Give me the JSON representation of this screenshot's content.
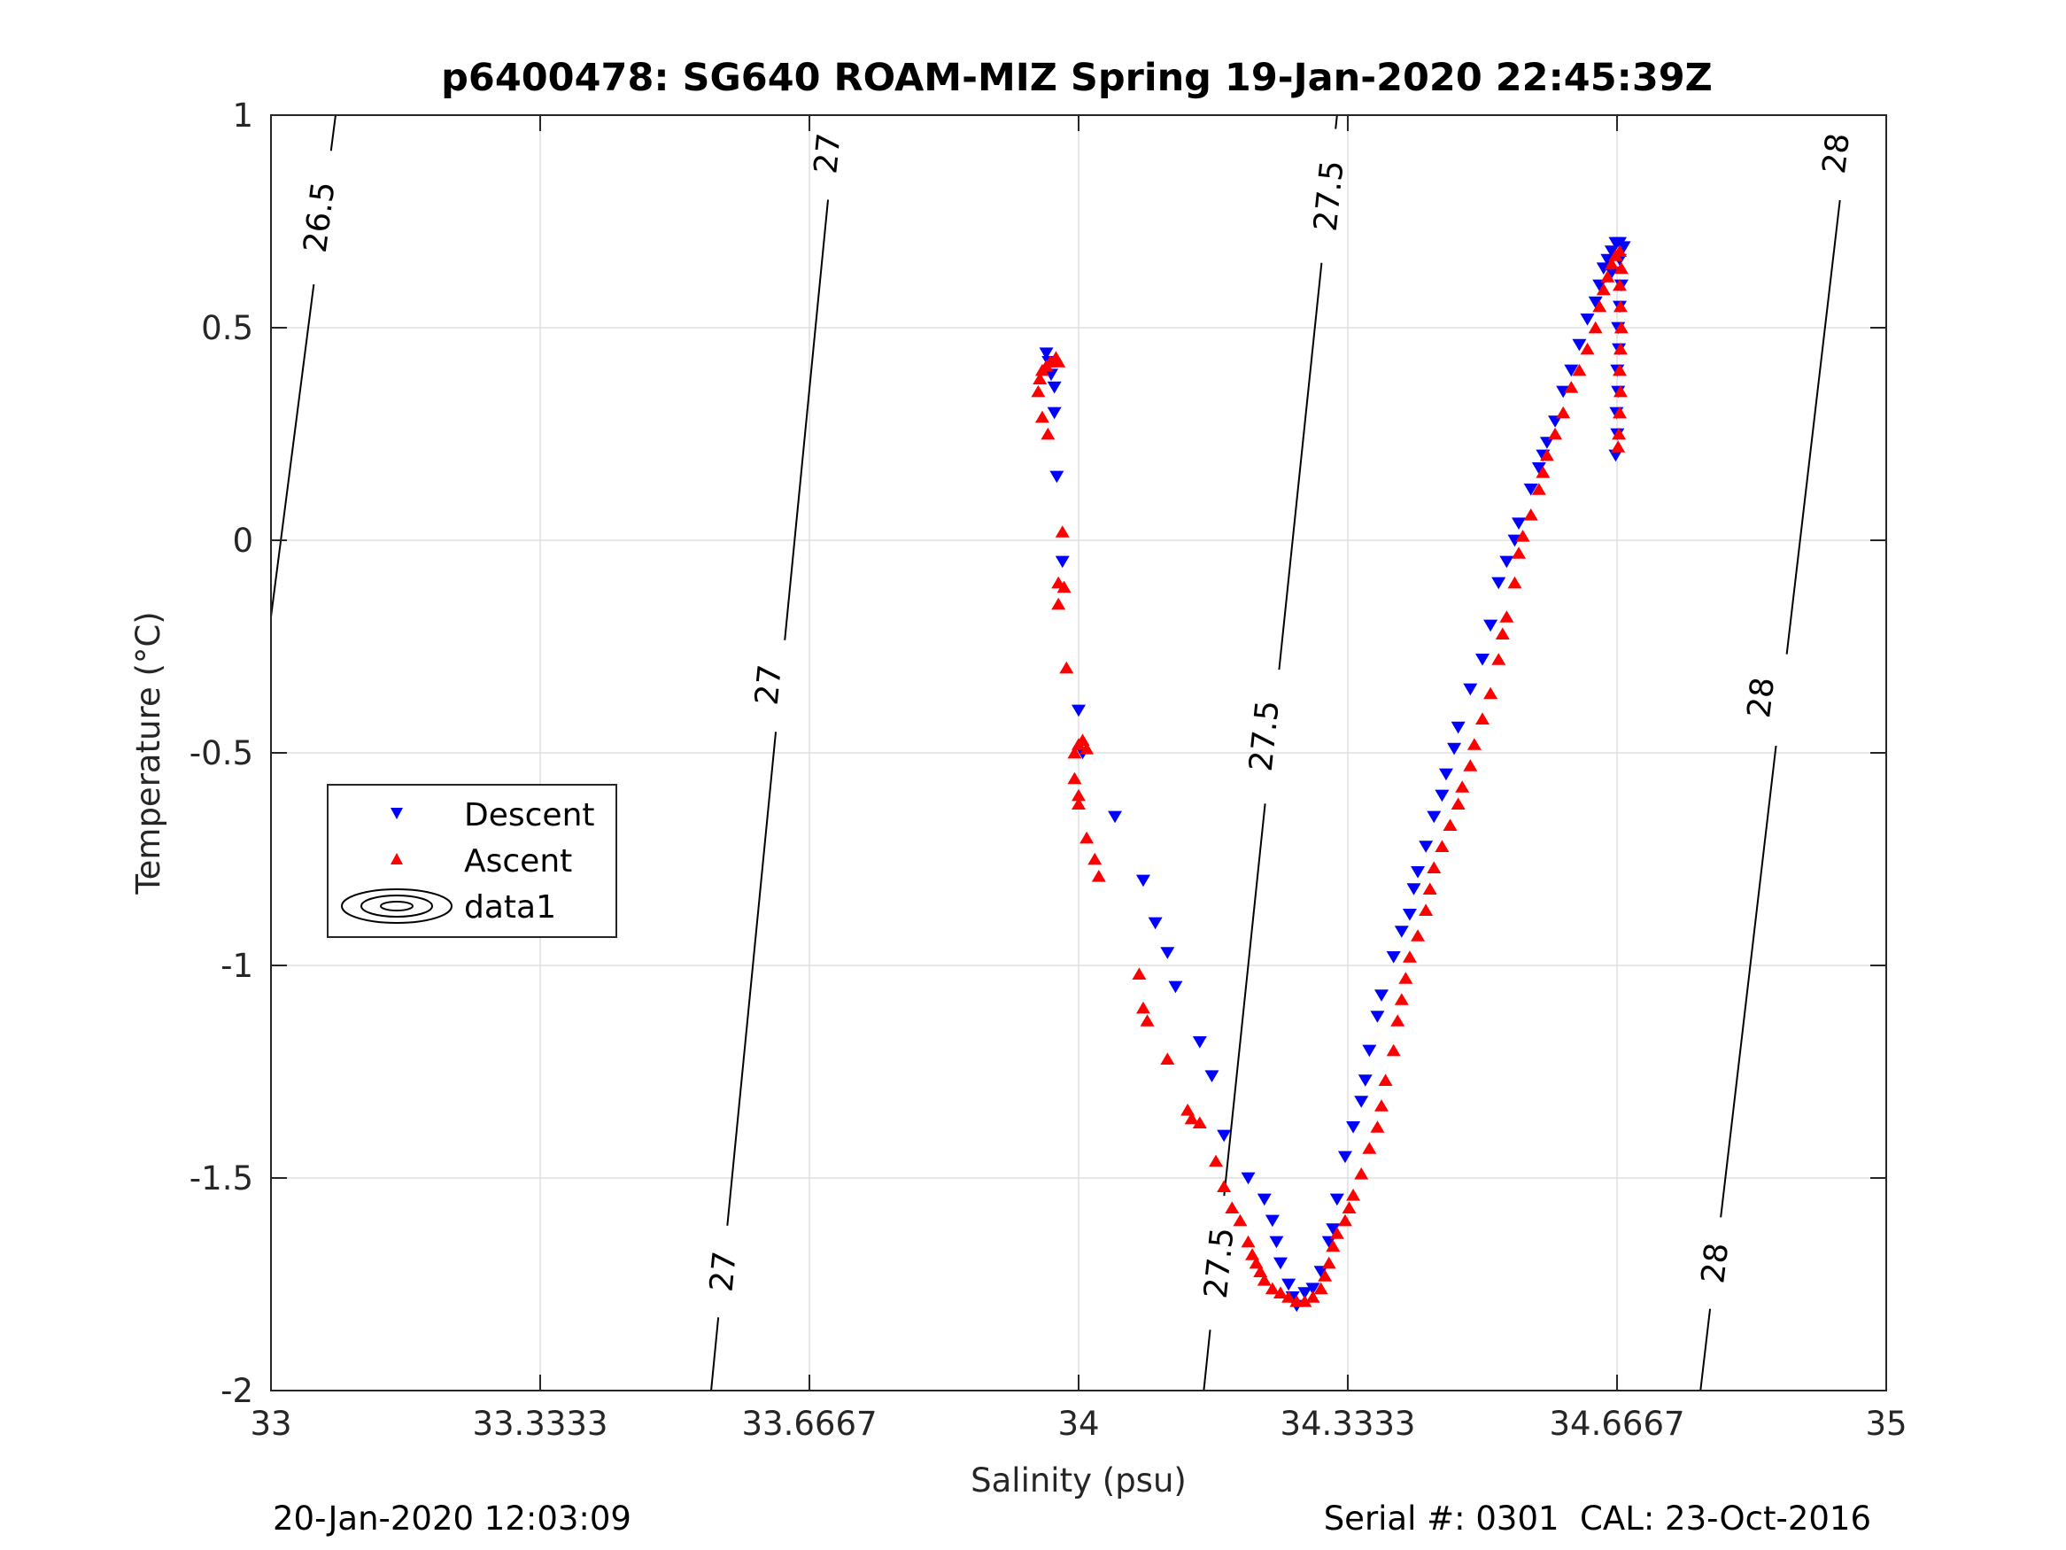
{
  "chart_data": {
    "type": "scatter",
    "title": "p6400478: SG640 ROAM-MIZ Spring 19-Jan-2020 22:45:39Z",
    "xlabel": "Salinity (psu)",
    "ylabel": "Temperature (°C)",
    "xlim": [
      33,
      35
    ],
    "ylim": [
      -2,
      1
    ],
    "x_ticks": [
      33,
      33.3333,
      33.6667,
      34,
      34.3333,
      34.6667,
      35
    ],
    "x_tick_labels": [
      "33",
      "33.3333",
      "33.6667",
      "34",
      "34.3333",
      "34.6667",
      "35"
    ],
    "y_ticks": [
      1,
      0.5,
      0,
      -0.5,
      -1,
      -1.5,
      -2
    ],
    "y_tick_labels": [
      "1",
      "0.5",
      "0",
      "-0.5",
      "-1",
      "-1.5",
      "-2"
    ],
    "grid": true,
    "legend_position": "left-middle",
    "footer_left": "20-Jan-2020 12:03:09",
    "footer_right": "Serial #: 0301  CAL: 23-Oct-2016",
    "series": [
      {
        "name": "Descent",
        "marker": "triangle-down",
        "color": "#0000ff",
        "points": [
          [
            33.96,
            0.44
          ],
          [
            33.963,
            0.42
          ],
          [
            33.966,
            0.39
          ],
          [
            33.97,
            0.36
          ],
          [
            33.97,
            0.3
          ],
          [
            33.973,
            0.15
          ],
          [
            33.98,
            -0.05
          ],
          [
            34.0,
            -0.4
          ],
          [
            34.005,
            -0.5
          ],
          [
            34.045,
            -0.65
          ],
          [
            34.08,
            -0.8
          ],
          [
            34.095,
            -0.9
          ],
          [
            34.11,
            -0.97
          ],
          [
            34.12,
            -1.05
          ],
          [
            34.15,
            -1.18
          ],
          [
            34.165,
            -1.26
          ],
          [
            34.18,
            -1.4
          ],
          [
            34.21,
            -1.5
          ],
          [
            34.23,
            -1.55
          ],
          [
            34.24,
            -1.6
          ],
          [
            34.245,
            -1.65
          ],
          [
            34.25,
            -1.7
          ],
          [
            34.26,
            -1.75
          ],
          [
            34.265,
            -1.78
          ],
          [
            34.27,
            -1.8
          ],
          [
            34.28,
            -1.77
          ],
          [
            34.29,
            -1.76
          ],
          [
            34.3,
            -1.72
          ],
          [
            34.31,
            -1.65
          ],
          [
            34.315,
            -1.62
          ],
          [
            34.32,
            -1.55
          ],
          [
            34.33,
            -1.45
          ],
          [
            34.34,
            -1.38
          ],
          [
            34.35,
            -1.32
          ],
          [
            34.355,
            -1.27
          ],
          [
            34.36,
            -1.2
          ],
          [
            34.37,
            -1.12
          ],
          [
            34.375,
            -1.07
          ],
          [
            34.39,
            -0.98
          ],
          [
            34.4,
            -0.92
          ],
          [
            34.41,
            -0.88
          ],
          [
            34.415,
            -0.82
          ],
          [
            34.42,
            -0.78
          ],
          [
            34.43,
            -0.72
          ],
          [
            34.44,
            -0.65
          ],
          [
            34.45,
            -0.6
          ],
          [
            34.455,
            -0.55
          ],
          [
            34.465,
            -0.49
          ],
          [
            34.47,
            -0.44
          ],
          [
            34.485,
            -0.35
          ],
          [
            34.5,
            -0.28
          ],
          [
            34.51,
            -0.2
          ],
          [
            34.52,
            -0.1
          ],
          [
            34.53,
            -0.05
          ],
          [
            34.54,
            0.0
          ],
          [
            34.545,
            0.04
          ],
          [
            34.56,
            0.12
          ],
          [
            34.57,
            0.17
          ],
          [
            34.575,
            0.2
          ],
          [
            34.58,
            0.23
          ],
          [
            34.59,
            0.28
          ],
          [
            34.6,
            0.35
          ],
          [
            34.61,
            0.4
          ],
          [
            34.62,
            0.46
          ],
          [
            34.63,
            0.52
          ],
          [
            34.64,
            0.56
          ],
          [
            34.645,
            0.6
          ],
          [
            34.65,
            0.64
          ],
          [
            34.655,
            0.66
          ],
          [
            34.66,
            0.68
          ],
          [
            34.665,
            0.7
          ],
          [
            34.67,
            0.7
          ],
          [
            34.675,
            0.69
          ],
          [
            34.67,
            0.66
          ],
          [
            34.672,
            0.6
          ],
          [
            34.67,
            0.55
          ],
          [
            34.668,
            0.5
          ],
          [
            34.669,
            0.45
          ],
          [
            34.667,
            0.4
          ],
          [
            34.668,
            0.35
          ],
          [
            34.666,
            0.3
          ],
          [
            34.667,
            0.25
          ],
          [
            34.665,
            0.2
          ],
          [
            34.66,
            0.63
          ]
        ]
      },
      {
        "name": "Ascent",
        "marker": "triangle-up",
        "color": "#ff0000",
        "points": [
          [
            33.95,
            0.35
          ],
          [
            33.952,
            0.38
          ],
          [
            33.955,
            0.4
          ],
          [
            33.96,
            0.41
          ],
          [
            33.965,
            0.42
          ],
          [
            33.972,
            0.43
          ],
          [
            33.975,
            0.42
          ],
          [
            33.955,
            0.29
          ],
          [
            33.962,
            0.25
          ],
          [
            33.98,
            0.02
          ],
          [
            33.975,
            -0.1
          ],
          [
            33.982,
            -0.11
          ],
          [
            33.975,
            -0.15
          ],
          [
            33.985,
            -0.3
          ],
          [
            33.995,
            -0.5
          ],
          [
            34.0,
            -0.48
          ],
          [
            34.005,
            -0.47
          ],
          [
            34.01,
            -0.49
          ],
          [
            33.995,
            -0.56
          ],
          [
            34.0,
            -0.6
          ],
          [
            34.0,
            -0.62
          ],
          [
            34.01,
            -0.7
          ],
          [
            34.02,
            -0.75
          ],
          [
            34.025,
            -0.79
          ],
          [
            34.075,
            -1.02
          ],
          [
            34.08,
            -1.1
          ],
          [
            34.085,
            -1.13
          ],
          [
            34.11,
            -1.22
          ],
          [
            34.135,
            -1.34
          ],
          [
            34.14,
            -1.36
          ],
          [
            34.15,
            -1.37
          ],
          [
            34.17,
            -1.46
          ],
          [
            34.18,
            -1.52
          ],
          [
            34.19,
            -1.57
          ],
          [
            34.2,
            -1.6
          ],
          [
            34.21,
            -1.65
          ],
          [
            34.215,
            -1.68
          ],
          [
            34.22,
            -1.7
          ],
          [
            34.225,
            -1.72
          ],
          [
            34.23,
            -1.74
          ],
          [
            34.24,
            -1.76
          ],
          [
            34.25,
            -1.77
          ],
          [
            34.26,
            -1.78
          ],
          [
            34.27,
            -1.79
          ],
          [
            34.28,
            -1.79
          ],
          [
            34.29,
            -1.78
          ],
          [
            34.3,
            -1.76
          ],
          [
            34.305,
            -1.73
          ],
          [
            34.31,
            -1.7
          ],
          [
            34.315,
            -1.66
          ],
          [
            34.32,
            -1.63
          ],
          [
            34.33,
            -1.6
          ],
          [
            34.335,
            -1.57
          ],
          [
            34.34,
            -1.54
          ],
          [
            34.35,
            -1.49
          ],
          [
            34.36,
            -1.43
          ],
          [
            34.37,
            -1.38
          ],
          [
            34.375,
            -1.33
          ],
          [
            34.38,
            -1.27
          ],
          [
            34.39,
            -1.2
          ],
          [
            34.395,
            -1.13
          ],
          [
            34.4,
            -1.08
          ],
          [
            34.405,
            -1.03
          ],
          [
            34.41,
            -0.98
          ],
          [
            34.42,
            -0.93
          ],
          [
            34.43,
            -0.87
          ],
          [
            34.435,
            -0.82
          ],
          [
            34.44,
            -0.77
          ],
          [
            34.45,
            -0.72
          ],
          [
            34.46,
            -0.67
          ],
          [
            34.47,
            -0.62
          ],
          [
            34.475,
            -0.58
          ],
          [
            34.485,
            -0.53
          ],
          [
            34.49,
            -0.48
          ],
          [
            34.5,
            -0.42
          ],
          [
            34.51,
            -0.36
          ],
          [
            34.52,
            -0.28
          ],
          [
            34.525,
            -0.22
          ],
          [
            34.53,
            -0.18
          ],
          [
            34.54,
            -0.1
          ],
          [
            34.545,
            -0.03
          ],
          [
            34.55,
            0.01
          ],
          [
            34.56,
            0.06
          ],
          [
            34.57,
            0.12
          ],
          [
            34.575,
            0.16
          ],
          [
            34.58,
            0.2
          ],
          [
            34.59,
            0.25
          ],
          [
            34.6,
            0.3
          ],
          [
            34.61,
            0.36
          ],
          [
            34.62,
            0.4
          ],
          [
            34.63,
            0.45
          ],
          [
            34.64,
            0.5
          ],
          [
            34.645,
            0.55
          ],
          [
            34.65,
            0.59
          ],
          [
            34.655,
            0.62
          ],
          [
            34.66,
            0.65
          ],
          [
            34.665,
            0.67
          ],
          [
            34.67,
            0.68
          ],
          [
            34.672,
            0.64
          ],
          [
            34.67,
            0.6
          ],
          [
            34.671,
            0.55
          ],
          [
            34.672,
            0.5
          ],
          [
            34.671,
            0.45
          ],
          [
            34.67,
            0.4
          ],
          [
            34.671,
            0.35
          ],
          [
            34.67,
            0.3
          ],
          [
            34.669,
            0.25
          ],
          [
            34.668,
            0.22
          ]
        ]
      },
      {
        "name": "data1",
        "type": "contour",
        "color": "#000000",
        "levels": [
          {
            "label": "26.5",
            "line": [
              [
                33.0,
                -0.18
              ],
              [
                33.08,
                1.0
              ]
            ],
            "label_positions": [
              [
                33.06,
                0.76
              ]
            ]
          },
          {
            "label": "27",
            "line": [
              [
                33.545,
                -2.0
              ],
              [
                33.7,
                1.0
              ]
            ],
            "label_positions": [
              [
                33.56,
                -1.72
              ],
              [
                33.616,
                -0.34
              ],
              [
                33.689,
                0.91
              ]
            ]
          },
          {
            "label": "27.5",
            "line": [
              [
                34.155,
                -2.0
              ],
              [
                34.32,
                1.0
              ]
            ],
            "label_positions": [
              [
                34.174,
                -1.7
              ],
              [
                34.23,
                -0.46
              ],
              [
                34.31,
                0.81
              ]
            ]
          },
          {
            "label": "28",
            "line": [
              [
                34.77,
                -2.0
              ],
              [
                34.955,
                1.0
              ]
            ],
            "label_positions": [
              [
                34.788,
                -1.7
              ],
              [
                34.845,
                -0.37
              ],
              [
                34.938,
                0.91
              ]
            ]
          }
        ]
      }
    ]
  }
}
